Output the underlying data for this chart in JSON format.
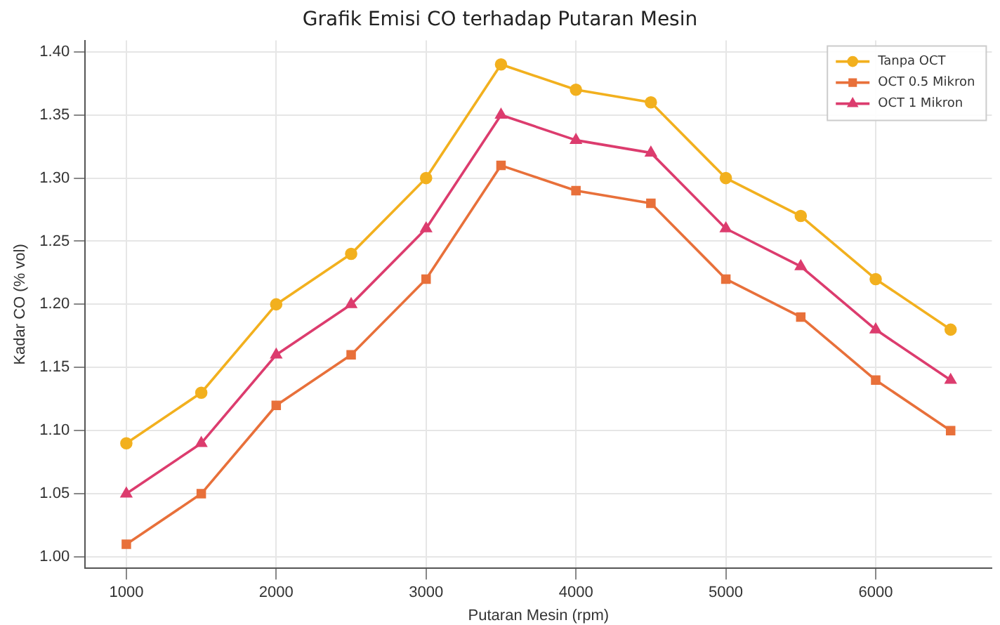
{
  "chart_data": {
    "type": "line",
    "title": "Grafik Emisi CO terhadap Putaran Mesin",
    "xlabel": "Putaran Mesin (rpm)",
    "ylabel": "Kadar CO (% vol)",
    "x": [
      1000,
      1500,
      2000,
      2500,
      3000,
      3500,
      4000,
      4500,
      5000,
      5500,
      6000,
      6500
    ],
    "series": [
      {
        "name": "Tanpa OCT",
        "color": "#f2b01e",
        "marker": "circle",
        "values": [
          1.09,
          1.13,
          1.2,
          1.24,
          1.3,
          1.39,
          1.37,
          1.36,
          1.3,
          1.27,
          1.22,
          1.18
        ]
      },
      {
        "name": "OCT 0.5 Mikron",
        "color": "#e8703a",
        "marker": "square",
        "values": [
          1.01,
          1.05,
          1.12,
          1.16,
          1.22,
          1.31,
          1.29,
          1.28,
          1.22,
          1.19,
          1.14,
          1.1
        ]
      },
      {
        "name": "OCT 1 Mikron",
        "color": "#dc3c6e",
        "marker": "triangle",
        "values": [
          1.05,
          1.09,
          1.16,
          1.2,
          1.26,
          1.35,
          1.33,
          1.32,
          1.26,
          1.23,
          1.18,
          1.14
        ]
      }
    ],
    "xlim": [
      725,
      6775
    ],
    "xticks": [
      1000,
      2000,
      3000,
      4000,
      5000,
      6000
    ],
    "ylim": [
      0.991,
      1.409
    ],
    "yticks": [
      {
        "value": 1.0,
        "label": "1.00"
      },
      {
        "value": 1.05,
        "label": "1.05"
      },
      {
        "value": 1.1,
        "label": "1.10"
      },
      {
        "value": 1.15,
        "label": "1.15"
      },
      {
        "value": 1.2,
        "label": "1.20"
      },
      {
        "value": 1.25,
        "label": "1.25"
      },
      {
        "value": 1.3,
        "label": "1.30"
      },
      {
        "value": 1.35,
        "label": "1.35"
      },
      {
        "value": 1.4,
        "label": "1.40"
      }
    ],
    "grid": true,
    "legend": "top right"
  }
}
